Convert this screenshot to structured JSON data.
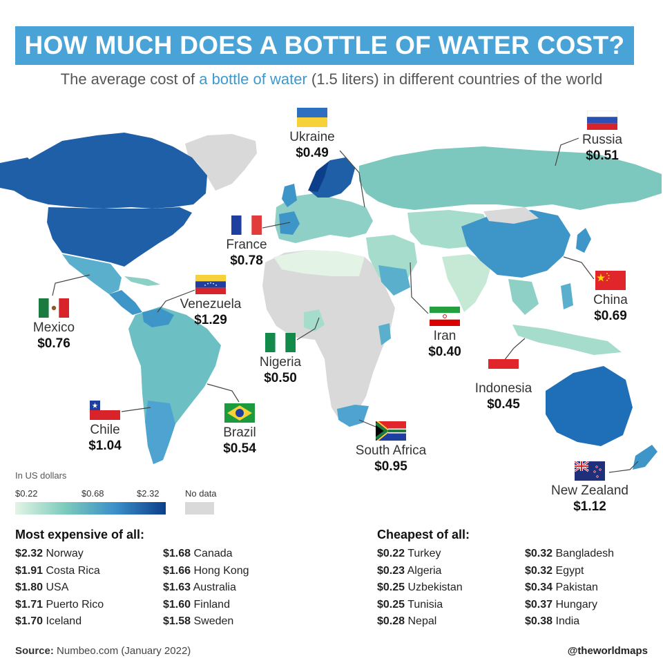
{
  "title": "HOW MUCH DOES A BOTTLE OF WATER COST?",
  "subtitle": {
    "pre": "The average cost of ",
    "highlight": "a bottle of water",
    "post": " (1.5 liters) in different countries of the world"
  },
  "colors": {
    "banner": "#4aa3d6",
    "highlight": "#3a9ad0",
    "scale_low": "#e3f4e6",
    "scale_mid": "#3b8fc9",
    "scale_high": "#0c3e8a",
    "no_data": "#d9d9d9"
  },
  "callouts": [
    {
      "country": "Ukraine",
      "price": "$0.49",
      "flag": "ukraine"
    },
    {
      "country": "Russia",
      "price": "$0.51",
      "flag": "russia"
    },
    {
      "country": "France",
      "price": "$0.78",
      "flag": "france"
    },
    {
      "country": "Venezuela",
      "price": "$1.29",
      "flag": "venezuela"
    },
    {
      "country": "Mexico",
      "price": "$0.76",
      "flag": "mexico"
    },
    {
      "country": "China",
      "price": "$0.69",
      "flag": "china"
    },
    {
      "country": "Iran",
      "price": "$0.40",
      "flag": "iran"
    },
    {
      "country": "Nigeria",
      "price": "$0.50",
      "flag": "nigeria"
    },
    {
      "country": "Indonesia",
      "price": "$0.45",
      "flag": "indonesia"
    },
    {
      "country": "Chile",
      "price": "$1.04",
      "flag": "chile"
    },
    {
      "country": "Brazil",
      "price": "$0.54",
      "flag": "brazil"
    },
    {
      "country": "South Africa",
      "price": "$0.95",
      "flag": "south-africa"
    },
    {
      "country": "New Zealand",
      "price": "$1.12",
      "flag": "new-zealand"
    }
  ],
  "legend": {
    "title": "In US dollars",
    "min": "$0.22",
    "mid": "$0.68",
    "max": "$2.32",
    "no_data": "No data"
  },
  "most_expensive": {
    "heading": "Most expensive of all:",
    "col1": [
      {
        "price": "$2.32",
        "country": "Norway"
      },
      {
        "price": "$1.91",
        "country": "Costa Rica"
      },
      {
        "price": "$1.80",
        "country": "USA"
      },
      {
        "price": "$1.71",
        "country": "Puerto Rico"
      },
      {
        "price": "$1.70",
        "country": "Iceland"
      }
    ],
    "col2": [
      {
        "price": "$1.68",
        "country": "Canada"
      },
      {
        "price": "$1.66",
        "country": "Hong Kong"
      },
      {
        "price": "$1.63",
        "country": "Australia"
      },
      {
        "price": "$1.60",
        "country": "Finland"
      },
      {
        "price": "$1.58",
        "country": "Sweden"
      }
    ]
  },
  "cheapest": {
    "heading": "Cheapest of all:",
    "col1": [
      {
        "price": "$0.22",
        "country": "Turkey"
      },
      {
        "price": "$0.23",
        "country": "Algeria"
      },
      {
        "price": "$0.25",
        "country": "Uzbekistan"
      },
      {
        "price": "$0.25",
        "country": "Tunisia"
      },
      {
        "price": "$0.28",
        "country": "Nepal"
      }
    ],
    "col2": [
      {
        "price": "$0.32",
        "country": "Bangladesh"
      },
      {
        "price": "$0.32",
        "country": "Egypt"
      },
      {
        "price": "$0.34",
        "country": "Pakistan"
      },
      {
        "price": "$0.37",
        "country": "Hungary"
      },
      {
        "price": "$0.38",
        "country": "India"
      }
    ]
  },
  "footer": {
    "source_label": "Source:",
    "source": " Numbeo.com (January 2022)",
    "handle": "@theworldmaps"
  }
}
